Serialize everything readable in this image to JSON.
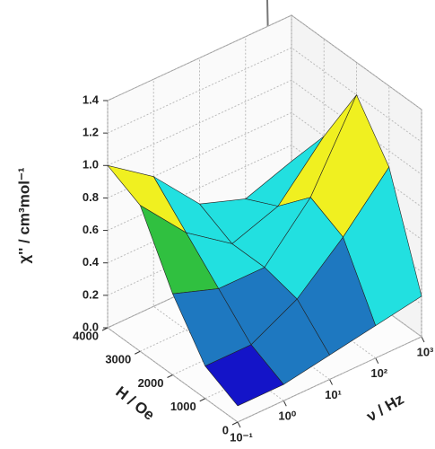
{
  "chart_data": {
    "type": "surface",
    "xlabel": "ν / Hz",
    "ylabel": "H / Oe",
    "zlabel": "χ'' / cm³mol⁻¹",
    "log_x": true,
    "xlim": [
      0.1,
      1000
    ],
    "ylim": [
      0,
      4000
    ],
    "zlim": [
      0,
      1.4
    ],
    "xticks": [
      {
        "value": 0.1,
        "label": "10⁻¹"
      },
      {
        "value": 1,
        "label": "10⁰"
      },
      {
        "value": 10,
        "label": "10¹"
      },
      {
        "value": 100,
        "label": "10²"
      },
      {
        "value": 1000,
        "label": "10³"
      }
    ],
    "yticks": [
      0,
      1000,
      2000,
      3000,
      4000
    ],
    "zticks": [
      {
        "value": 0,
        "label": "0.0"
      },
      0.2,
      0.4,
      0.6,
      0.8,
      {
        "value": 1,
        "label": "1.0"
      },
      1.2,
      1.4
    ],
    "x": [
      0.1,
      1,
      10,
      100,
      1000
    ],
    "y": [
      0,
      1000,
      2000,
      3000,
      4000
    ],
    "z": [
      [
        0.1,
        0.1,
        0.15,
        0.2,
        0.25
      ],
      [
        0.2,
        0.2,
        0.35,
        0.6,
        0.9
      ],
      [
        0.5,
        0.4,
        0.4,
        0.7,
        1.2
      ],
      [
        0.9,
        0.6,
        0.4,
        0.5,
        0.8
      ],
      [
        1.0,
        0.8,
        0.5,
        0.4,
        0.5
      ]
    ],
    "colors": [
      "#1414c8",
      "#1e78c0",
      "#22e0e0",
      "#30c040",
      "#f0f020",
      "#f08020",
      "#e02020"
    ],
    "grid": true
  }
}
